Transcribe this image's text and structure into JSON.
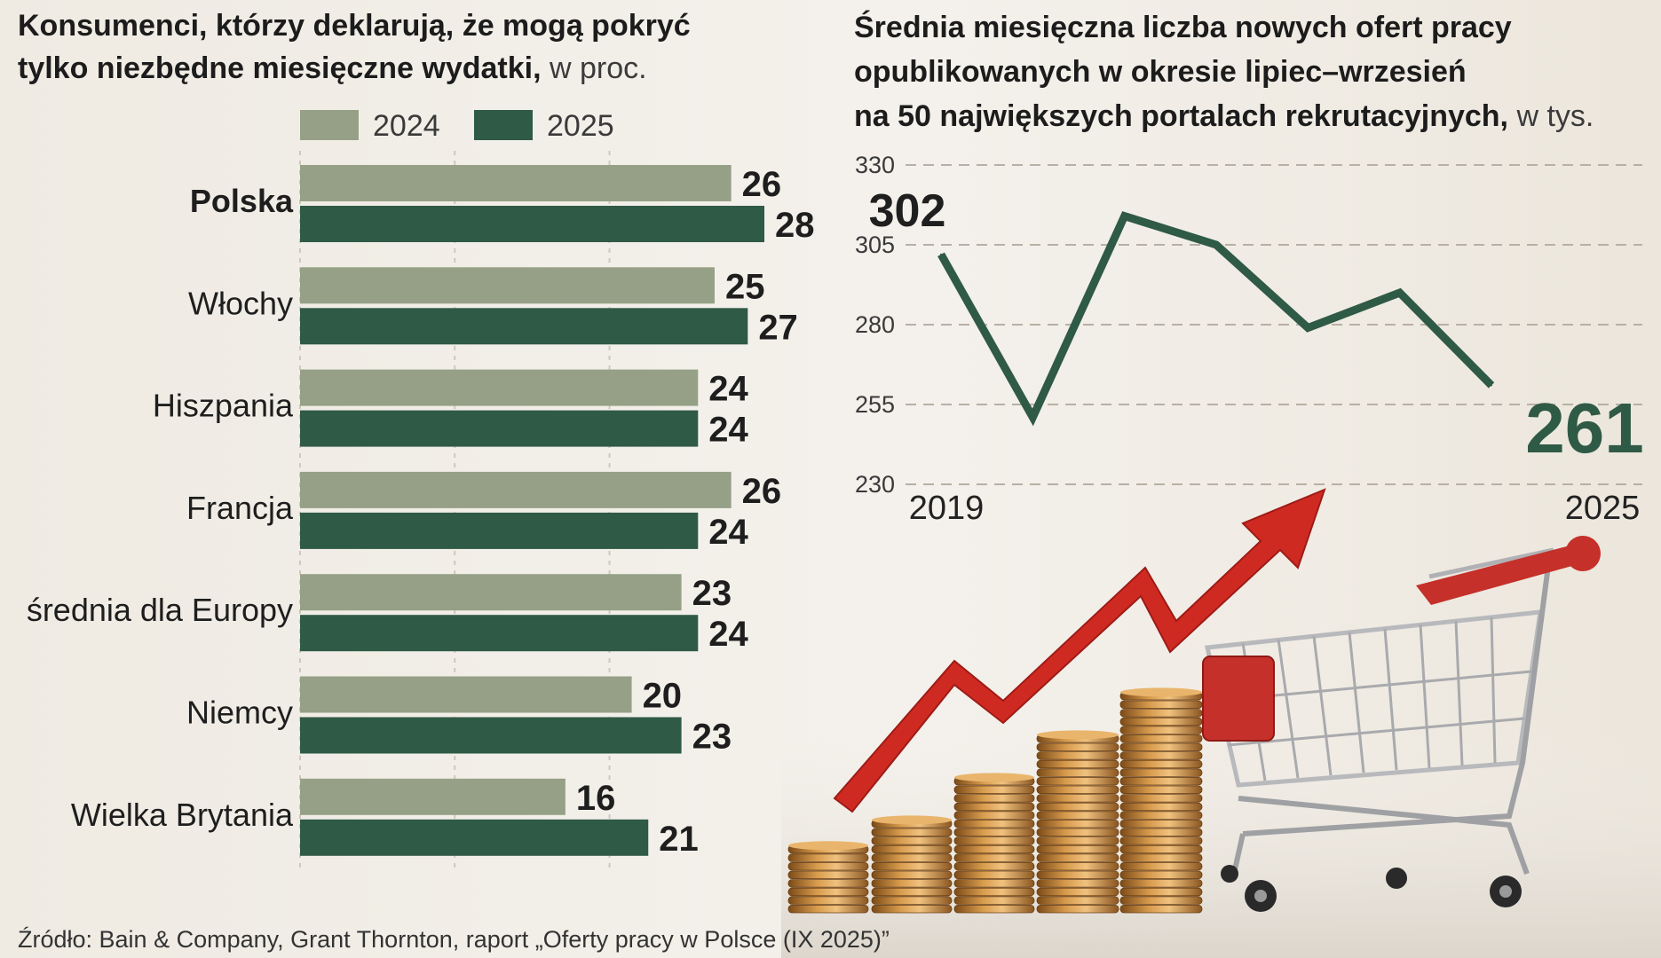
{
  "left": {
    "title_bold_1": "Konsumenci, którzy deklarują, że mogą pokryć",
    "title_bold_2": "tylko niezbędne miesięczne wydatki,",
    "title_unit": " w proc.",
    "legend": [
      {
        "label": "2024",
        "color": "#96a086"
      },
      {
        "label": "2025",
        "color": "#2f5a45"
      }
    ]
  },
  "right": {
    "title_1": "Średnia miesięczna liczba nowych ofert pracy",
    "title_2": "opublikowanych w okresie lipiec–wrzesień",
    "title_3": "na 50 największych portalach rekrutacyjnych,",
    "title_unit": " w tys.",
    "start_label": "302",
    "end_label": "261",
    "x_start": "2019",
    "x_end": "2025"
  },
  "source": "Źródło: Bain & Company, Grant Thornton, raport „Oferty pracy w Polsce (IX 2025)”",
  "chart_data": [
    {
      "type": "bar",
      "orientation": "horizontal",
      "title": "Konsumenci, którzy deklarują, że mogą pokryć tylko niezbędne miesięczne wydatki, w proc.",
      "categories": [
        "Polska",
        "Włochy",
        "Hiszpania",
        "Francja",
        "średnia dla Europy",
        "Niemcy",
        "Wielka Brytania"
      ],
      "highlight_category": "Polska",
      "series": [
        {
          "name": "2024",
          "color": "#96a086",
          "values": [
            26,
            25,
            24,
            26,
            23,
            20,
            16
          ]
        },
        {
          "name": "2025",
          "color": "#2f5a45",
          "values": [
            28,
            27,
            24,
            24,
            24,
            23,
            21
          ]
        }
      ],
      "xlim": [
        0,
        28
      ],
      "grid": true
    },
    {
      "type": "line",
      "title": "Średnia miesięczna liczba nowych ofert pracy opublikowanych w okresie lipiec–wrzesień na 50 największych portalach rekrutacyjnych, w tys.",
      "x": [
        2019,
        2020,
        2021,
        2022,
        2023,
        2024,
        2025
      ],
      "series": [
        {
          "color": "#2f5a45",
          "values": [
            302,
            251,
            314,
            305,
            279,
            290,
            261
          ]
        }
      ],
      "yticks": [
        330,
        305,
        280,
        255,
        230
      ],
      "ylim": [
        230,
        330
      ],
      "grid": true
    }
  ]
}
